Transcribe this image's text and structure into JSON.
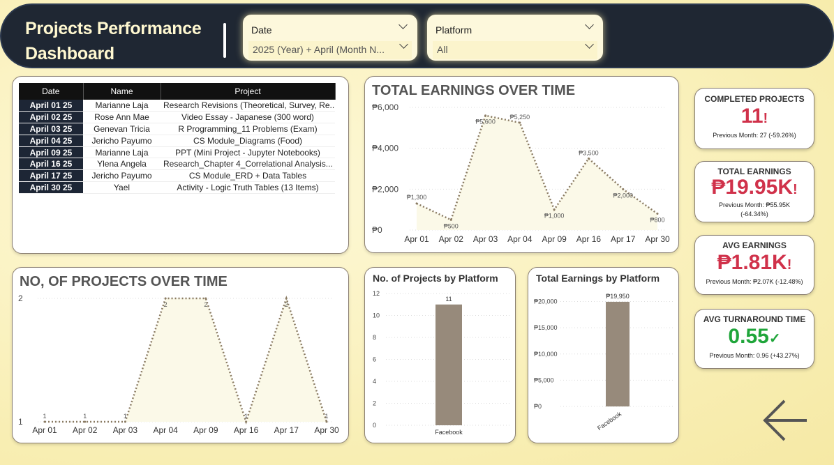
{
  "header": {
    "title_line1": "Projects Performance",
    "title_line2": "Dashboard",
    "date_slicer": {
      "label": "Date",
      "value": "2025 (Year) + April (Month N..."
    },
    "platform_slicer": {
      "label": "Platform",
      "value": "All"
    }
  },
  "table": {
    "columns": [
      "Date",
      "Name",
      "Project"
    ],
    "rows": [
      [
        "April 01 25",
        "Marianne Laja",
        "Research Revisions (Theoretical, Survey, Re..."
      ],
      [
        "April 02 25",
        "Rose Ann Mae",
        "Video Essay - Japanese (300 word)"
      ],
      [
        "April 03 25",
        "Genevan Tricia",
        "R Programming_11 Problems (Exam)"
      ],
      [
        "April 04 25",
        "Jericho Payumo",
        "CS Module_Diagrams (Food)"
      ],
      [
        "April 09 25",
        "Marianne Laja",
        "PPT (Mini Project - Jupyter Notebooks)"
      ],
      [
        "April 16 25",
        "Ylena Angela",
        "Research_Chapter 4_Correlational Analysis..."
      ],
      [
        "April 17 25",
        "Jericho Payumo",
        "CS Module_ERD + Data Tables"
      ],
      [
        "April 30 25",
        "Yael",
        "Activity - Logic Truth Tables (13 Items)"
      ]
    ]
  },
  "kpis": {
    "completed": {
      "title": "COMPLETED PROJECTS",
      "value": "11",
      "mark": "!",
      "prev": "Previous Month: 27 (-59.26%)"
    },
    "earnings": {
      "title": "TOTAL EARNINGS",
      "value": "₱19.95K",
      "mark": "!",
      "prev1": "Previous Month: ₱55.95K",
      "prev2": "(-64.34%)"
    },
    "avg": {
      "title": "AVG EARNINGS",
      "value": "₱1.81K",
      "mark": "!",
      "prev": "Previous Month: ₱2.07K (-12.48%)"
    },
    "turnaround": {
      "title": "AVG TURNAROUND TIME",
      "value": "0.55",
      "mark": "✓",
      "prev": "Previous Month: 0.96 (+43.27%)"
    }
  },
  "colors": {
    "negative": "#d0314a",
    "positive": "#1fa53a",
    "header": "#1f2733",
    "bar": "#978a7b",
    "line": "#8a7b63"
  },
  "chart_data": [
    {
      "id": "earnings",
      "type": "line",
      "title": "TOTAL EARNINGS OVER TIME",
      "categories": [
        "Apr 01",
        "Apr 02",
        "Apr 03",
        "Apr 04",
        "Apr 09",
        "Apr 16",
        "Apr 17",
        "Apr 30"
      ],
      "values": [
        1300,
        500,
        5600,
        5250,
        1000,
        3500,
        2000,
        800
      ],
      "data_labels": [
        "₱1,300",
        "₱500",
        "₱5,600",
        "₱5,250",
        "₱1,000",
        "₱3,500",
        "₱2,000",
        "₱800"
      ],
      "yticks": [
        0,
        2000,
        4000,
        6000
      ],
      "ytick_labels": [
        "₱0",
        "₱2,000",
        "₱4,000",
        "₱6,000"
      ],
      "ylim": [
        0,
        6000
      ]
    },
    {
      "id": "projects",
      "type": "line",
      "title": "NO, OF PROJECTS OVER TIME",
      "categories": [
        "Apr 01",
        "Apr 02",
        "Apr 03",
        "Apr 04",
        "Apr 09",
        "Apr 16",
        "Apr 17",
        "Apr 30"
      ],
      "values": [
        1,
        1,
        1,
        2,
        2,
        1,
        2,
        1
      ],
      "yticks": [
        1,
        2
      ],
      "ylim": [
        1,
        2
      ]
    },
    {
      "id": "proj-platform",
      "type": "bar",
      "title": "No. of Projects by Platform",
      "categories": [
        "Facebook"
      ],
      "values": [
        11
      ],
      "yticks": [
        0,
        2,
        4,
        6,
        8,
        10,
        12
      ],
      "ylim": [
        0,
        12
      ]
    },
    {
      "id": "earn-platform",
      "type": "bar",
      "title": "Total Earnings by Platform",
      "categories": [
        "Facebook"
      ],
      "values": [
        19950
      ],
      "data_labels": [
        "₱19,950"
      ],
      "yticks": [
        0,
        5000,
        10000,
        15000,
        20000
      ],
      "ytick_labels": [
        "₱0",
        "₱5,000",
        "₱10,000",
        "₱15,000",
        "₱20,000"
      ],
      "ylim": [
        0,
        21000
      ]
    }
  ]
}
